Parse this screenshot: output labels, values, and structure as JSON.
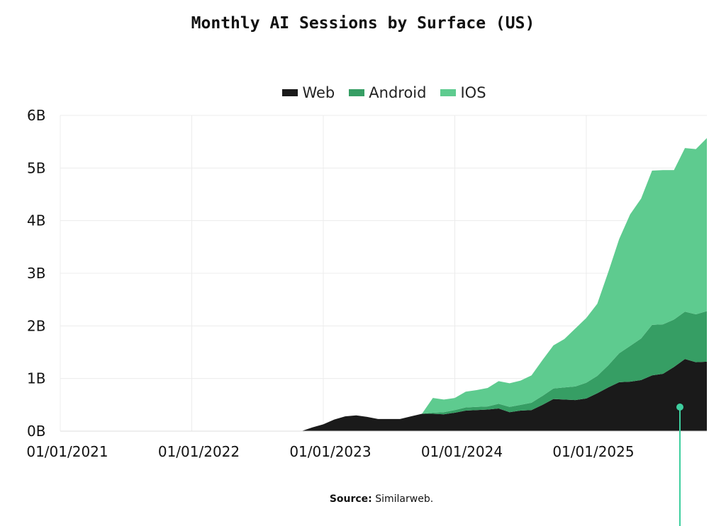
{
  "chart_data": {
    "type": "area",
    "stacked": true,
    "title": "Monthly AI Sessions by Surface (US)",
    "xlabel": "",
    "ylabel": "",
    "ylim": [
      0,
      6
    ],
    "y_unit": "B",
    "yticks": [
      "0B",
      "1B",
      "2B",
      "3B",
      "4B",
      "5B",
      "6B"
    ],
    "xticks": [
      "01/01/2021",
      "01/01/2022",
      "01/01/2023",
      "01/01/2024",
      "01/01/2025"
    ],
    "xlim": [
      "2021-01",
      "2025-12"
    ],
    "grid": true,
    "legend_position": "top",
    "x": [
      "2022-11",
      "2022-12",
      "2023-01",
      "2023-02",
      "2023-03",
      "2023-04",
      "2023-05",
      "2023-06",
      "2023-07",
      "2023-08",
      "2023-09",
      "2023-10",
      "2023-11",
      "2023-12",
      "2024-01",
      "2024-02",
      "2024-03",
      "2024-04",
      "2024-05",
      "2024-06",
      "2024-07",
      "2024-08",
      "2024-09",
      "2024-10",
      "2024-11",
      "2024-12",
      "2025-01",
      "2025-02",
      "2025-03",
      "2025-04",
      "2025-05",
      "2025-06",
      "2025-07",
      "2025-08",
      "2025-09",
      "2025-10",
      "2025-11",
      "2025-12"
    ],
    "series": [
      {
        "name": "Web",
        "color": "#1a1a1a",
        "values": [
          0,
          0.07,
          0.13,
          0.22,
          0.28,
          0.3,
          0.27,
          0.23,
          0.23,
          0.23,
          0.28,
          0.33,
          0.33,
          0.32,
          0.35,
          0.39,
          0.4,
          0.41,
          0.43,
          0.36,
          0.39,
          0.4,
          0.5,
          0.61,
          0.6,
          0.59,
          0.62,
          0.72,
          0.83,
          0.93,
          0.94,
          0.97,
          1.06,
          1.09,
          1.22,
          1.37,
          1.31,
          1.32
        ]
      },
      {
        "name": "Android",
        "color": "#369e64",
        "values": [
          0,
          0,
          0,
          0,
          0,
          0,
          0,
          0,
          0,
          0,
          0,
          0,
          0.02,
          0.04,
          0.05,
          0.06,
          0.06,
          0.06,
          0.09,
          0.1,
          0.11,
          0.14,
          0.17,
          0.2,
          0.23,
          0.26,
          0.3,
          0.33,
          0.42,
          0.55,
          0.68,
          0.79,
          0.96,
          0.94,
          0.9,
          0.9,
          0.91,
          0.96
        ]
      },
      {
        "name": "IOS",
        "color": "#5ecb8f",
        "values": [
          0,
          0,
          0,
          0,
          0,
          0,
          0,
          0,
          0,
          0,
          0,
          0,
          0.28,
          0.24,
          0.23,
          0.3,
          0.32,
          0.35,
          0.43,
          0.45,
          0.46,
          0.52,
          0.68,
          0.82,
          0.92,
          1.1,
          1.23,
          1.37,
          1.77,
          2.17,
          2.5,
          2.66,
          2.93,
          2.93,
          2.84,
          3.11,
          3.14,
          3.29
        ]
      }
    ],
    "annotation_marker_color": "#3ecf9f"
  },
  "source": {
    "label": "Source:",
    "text": "Similarweb."
  }
}
